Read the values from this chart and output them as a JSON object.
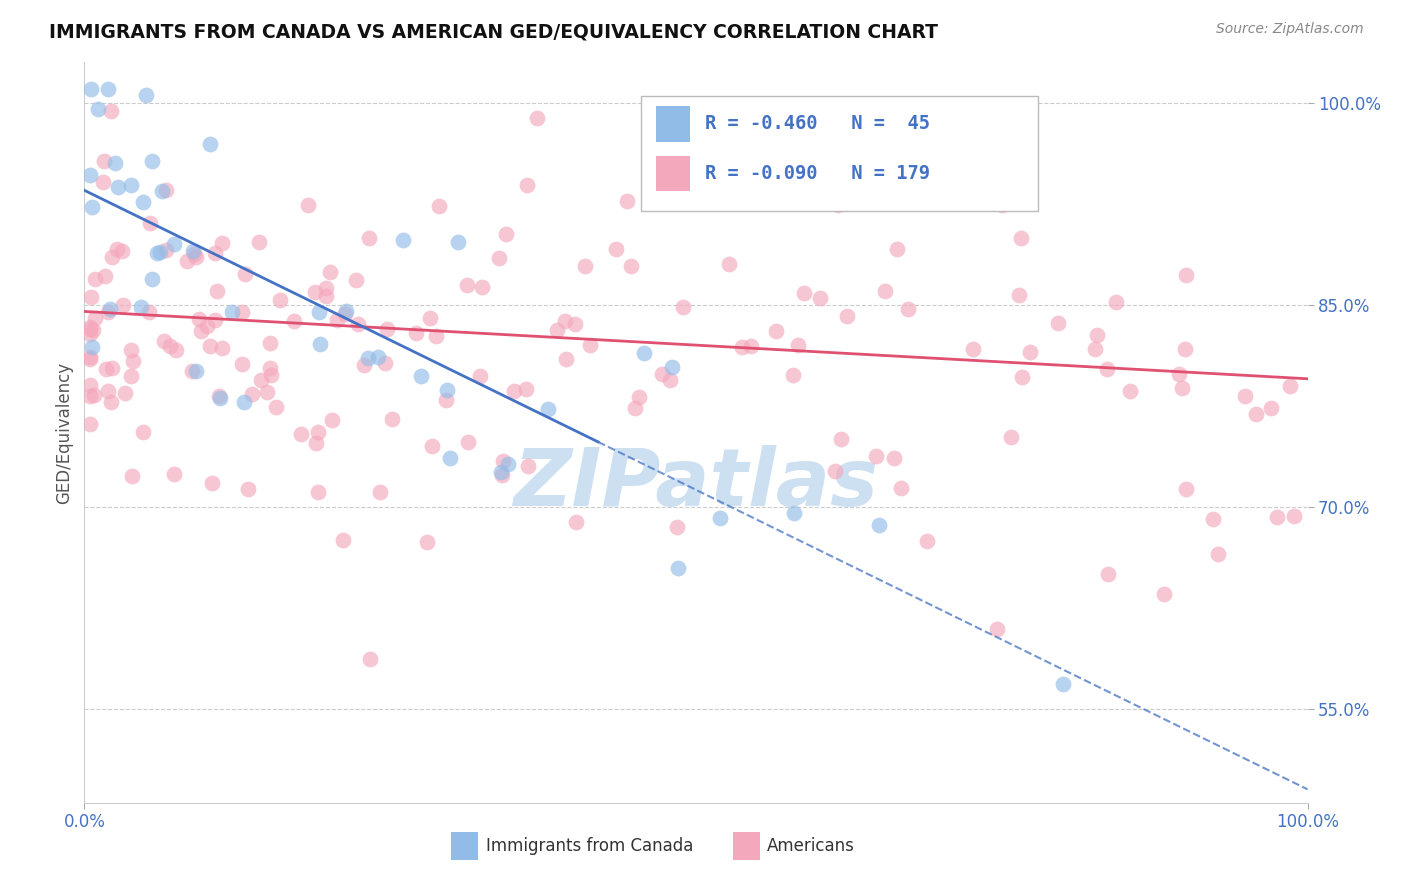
{
  "title": "IMMIGRANTS FROM CANADA VS AMERICAN GED/EQUIVALENCY CORRELATION CHART",
  "source_text": "Source: ZipAtlas.com",
  "ylabel": "GED/Equivalency",
  "legend_label1": "Immigrants from Canada",
  "legend_label2": "Americans",
  "R1": -0.46,
  "N1": 45,
  "R2": -0.09,
  "N2": 179,
  "color1": "#92bce8",
  "color2": "#f4a8bc",
  "trend_color1": "#4472c4",
  "trend_color2": "#e05070",
  "xlim": [
    0.0,
    100.0
  ],
  "ylim": [
    48.0,
    103.0
  ],
  "yticks": [
    55.0,
    70.0,
    85.0,
    100.0
  ],
  "background_color": "#ffffff",
  "grid_color": "#cccccc",
  "watermark": "ZIPatlas",
  "watermark_color1": "#c8ddf0",
  "watermark_color2": "#c8ddf0",
  "title_color": "#111111",
  "source_color": "#888888",
  "tick_color": "#4472c4",
  "ylabel_color": "#555555",
  "legend_text_color": "#4472c4",
  "legend_border_color": "#cccccc",
  "blue_trend_start_y": 93.5,
  "blue_trend_end_y": 49.0,
  "blue_solid_end_x": 42,
  "pink_trend_start_y": 84.5,
  "pink_trend_end_y": 79.5
}
